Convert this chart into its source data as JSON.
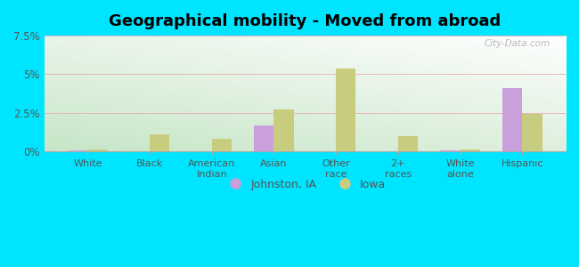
{
  "title": "Geographical mobility - Moved from abroad",
  "categories": [
    "White",
    "Black",
    "American\nIndian",
    "Asian",
    "Other\nrace",
    "2+\nraces",
    "White\nalone",
    "Hispanic"
  ],
  "johnston_values": [
    0.05,
    0.0,
    0.0,
    1.7,
    0.0,
    0.0,
    0.05,
    4.1
  ],
  "iowa_values": [
    0.1,
    1.1,
    0.8,
    2.7,
    5.4,
    1.0,
    0.12,
    2.45
  ],
  "johnston_color": "#c9a0dc",
  "iowa_color": "#c8cc7f",
  "bg_color_topleft": "#b8ddb8",
  "bg_color_topright": "#e8f5e8",
  "bg_color_bottom": "#f5fff5",
  "outer_bg": "#00e5ff",
  "ylim": [
    0,
    7.5
  ],
  "yticks": [
    0,
    2.5,
    5.0,
    7.5
  ],
  "ytick_labels": [
    "0%",
    "2.5%",
    "5%",
    "7.5%"
  ],
  "legend_labels": [
    "Johnston, IA",
    "Iowa"
  ],
  "bar_width": 0.32,
  "title_fontsize": 13,
  "watermark": "City-Data.com"
}
